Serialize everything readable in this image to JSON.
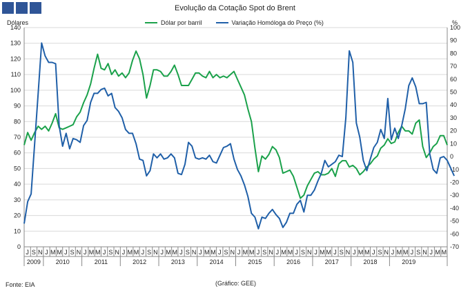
{
  "header": {
    "title": "Evolução da Cotação Spot do Brent"
  },
  "footer": {
    "source": "Fonte: EIA",
    "credit": "(Gráfico: GEE)"
  },
  "colors": {
    "series_1": "#1aa14a",
    "series_2": "#1f5fa8",
    "header_squares": "#2f5597"
  },
  "chart_data": {
    "type": "line",
    "title": "Evolução da Cotação Spot do Brent",
    "ylabel_left": "Dólares",
    "ylabel_right": "%",
    "ylim_left": [
      0,
      140
    ],
    "ylim_right": [
      -70,
      100
    ],
    "yticks_left": [
      0,
      10,
      20,
      30,
      40,
      50,
      60,
      70,
      80,
      90,
      100,
      110,
      120,
      130,
      140
    ],
    "yticks_right": [
      -70,
      -60,
      -50,
      -40,
      -30,
      -20,
      -10,
      0,
      10,
      20,
      30,
      40,
      50,
      60,
      70,
      80,
      90,
      100
    ],
    "month_labels": [
      "J",
      "S",
      "N",
      "J",
      "M",
      "M",
      "J",
      "S",
      "N",
      "J",
      "M",
      "M",
      "J",
      "S",
      "N",
      "J",
      "M",
      "M",
      "J",
      "S",
      "N",
      "J",
      "M",
      "M",
      "J",
      "S",
      "N",
      "J",
      "M",
      "M",
      "J",
      "S",
      "N",
      "J",
      "M",
      "M",
      "J",
      "S",
      "N",
      "J",
      "M",
      "M",
      "J",
      "S",
      "N",
      "J",
      "M",
      "M",
      "J",
      "S",
      "N",
      "J",
      "M",
      "M",
      "J",
      "S",
      "N",
      "J",
      "M",
      "M",
      "J",
      "S",
      "N",
      "J",
      "M",
      "M"
    ],
    "year_labels": [
      "2009",
      "2010",
      "2011",
      "2012",
      "2013",
      "2014",
      "2015",
      "2016",
      "2017",
      "2018",
      "2019"
    ],
    "grid": true,
    "legend_position": "top",
    "series": [
      {
        "name": "Dólar por barril",
        "axis": "left",
        "values": [
          65,
          73,
          68,
          73,
          77,
          75,
          77,
          74,
          79,
          85,
          76,
          75,
          76,
          77,
          78,
          83,
          86,
          92,
          97,
          104,
          114,
          123,
          114,
          113,
          117,
          110,
          113,
          109,
          111,
          108,
          111,
          119,
          125,
          120,
          110,
          95,
          103,
          113,
          113,
          112,
          109,
          109,
          112,
          116,
          110,
          103,
          103,
          103,
          107,
          111,
          111,
          109,
          108,
          112,
          108,
          110,
          108,
          109,
          108,
          110,
          112,
          107,
          102,
          97,
          88,
          80,
          63,
          48,
          58,
          56,
          59,
          64,
          62,
          57,
          47,
          48,
          49,
          45,
          38,
          31,
          33,
          39,
          43,
          47,
          48,
          46,
          46,
          47,
          50,
          45,
          53,
          55,
          55,
          51,
          52,
          50,
          46,
          48,
          51,
          53,
          56,
          58,
          63,
          65,
          69,
          66,
          67,
          73,
          77,
          74,
          74,
          72,
          79,
          81,
          64,
          57,
          60,
          64,
          66,
          71,
          71,
          65
        ]
      },
      {
        "name": "Variação Homóloga do Preço (%)",
        "axis": "right",
        "values": [
          -52,
          -35,
          -29,
          10,
          49,
          88,
          78,
          73,
          73,
          72,
          24,
          8,
          18,
          6,
          14,
          13,
          11,
          24,
          28,
          42,
          49,
          49,
          52,
          53,
          47,
          49,
          38,
          35,
          30,
          21,
          18,
          18,
          10,
          -2,
          -3,
          -15,
          -11,
          2,
          -1,
          2,
          -2,
          -1,
          2,
          -1,
          -13,
          -14,
          -6,
          11,
          8,
          -1,
          -2,
          -1,
          -2,
          1,
          -4,
          -5,
          1,
          7,
          8,
          10,
          -2,
          -10,
          -15,
          -22,
          -31,
          -44,
          -47,
          -56,
          -47,
          -48,
          -44,
          -41,
          -45,
          -48,
          -55,
          -51,
          -44,
          -44,
          -37,
          -34,
          -43,
          -30,
          -30,
          -26,
          -19,
          -13,
          -3,
          -8,
          -6,
          -4,
          1,
          0,
          30,
          82,
          73,
          26,
          15,
          -3,
          -11,
          -2,
          7,
          11,
          21,
          14,
          45,
          13,
          22,
          14,
          24,
          37,
          55,
          61,
          54,
          41,
          41,
          42,
          2,
          -10,
          -13,
          -1,
          0,
          -3,
          -9,
          -15
        ]
      }
    ]
  }
}
